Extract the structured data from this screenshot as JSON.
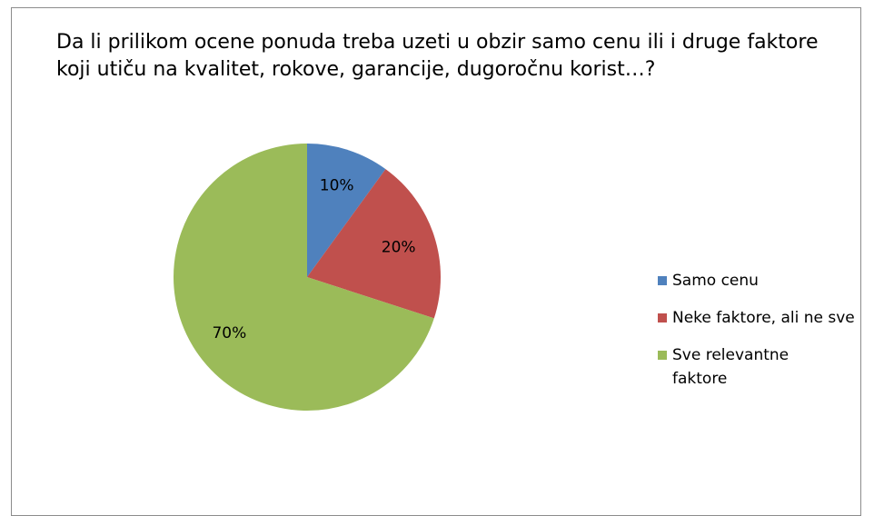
{
  "chart_data": {
    "type": "pie",
    "title": "Da li prilikom ocene ponuda treba uzeti u obzir samo cenu ili i druge faktore koji utiču na kvalitet, rokove, garancije, dugoročnu korist…?",
    "categories": [
      "Samo cenu",
      "Neke faktore, ali ne sve",
      "Sve relevantne faktore"
    ],
    "values": [
      10,
      20,
      70
    ],
    "value_labels": [
      "10%",
      "20%",
      "70%"
    ],
    "colors": [
      "#4f81bd",
      "#c0504d",
      "#9bbb59"
    ],
    "legend": "right"
  }
}
